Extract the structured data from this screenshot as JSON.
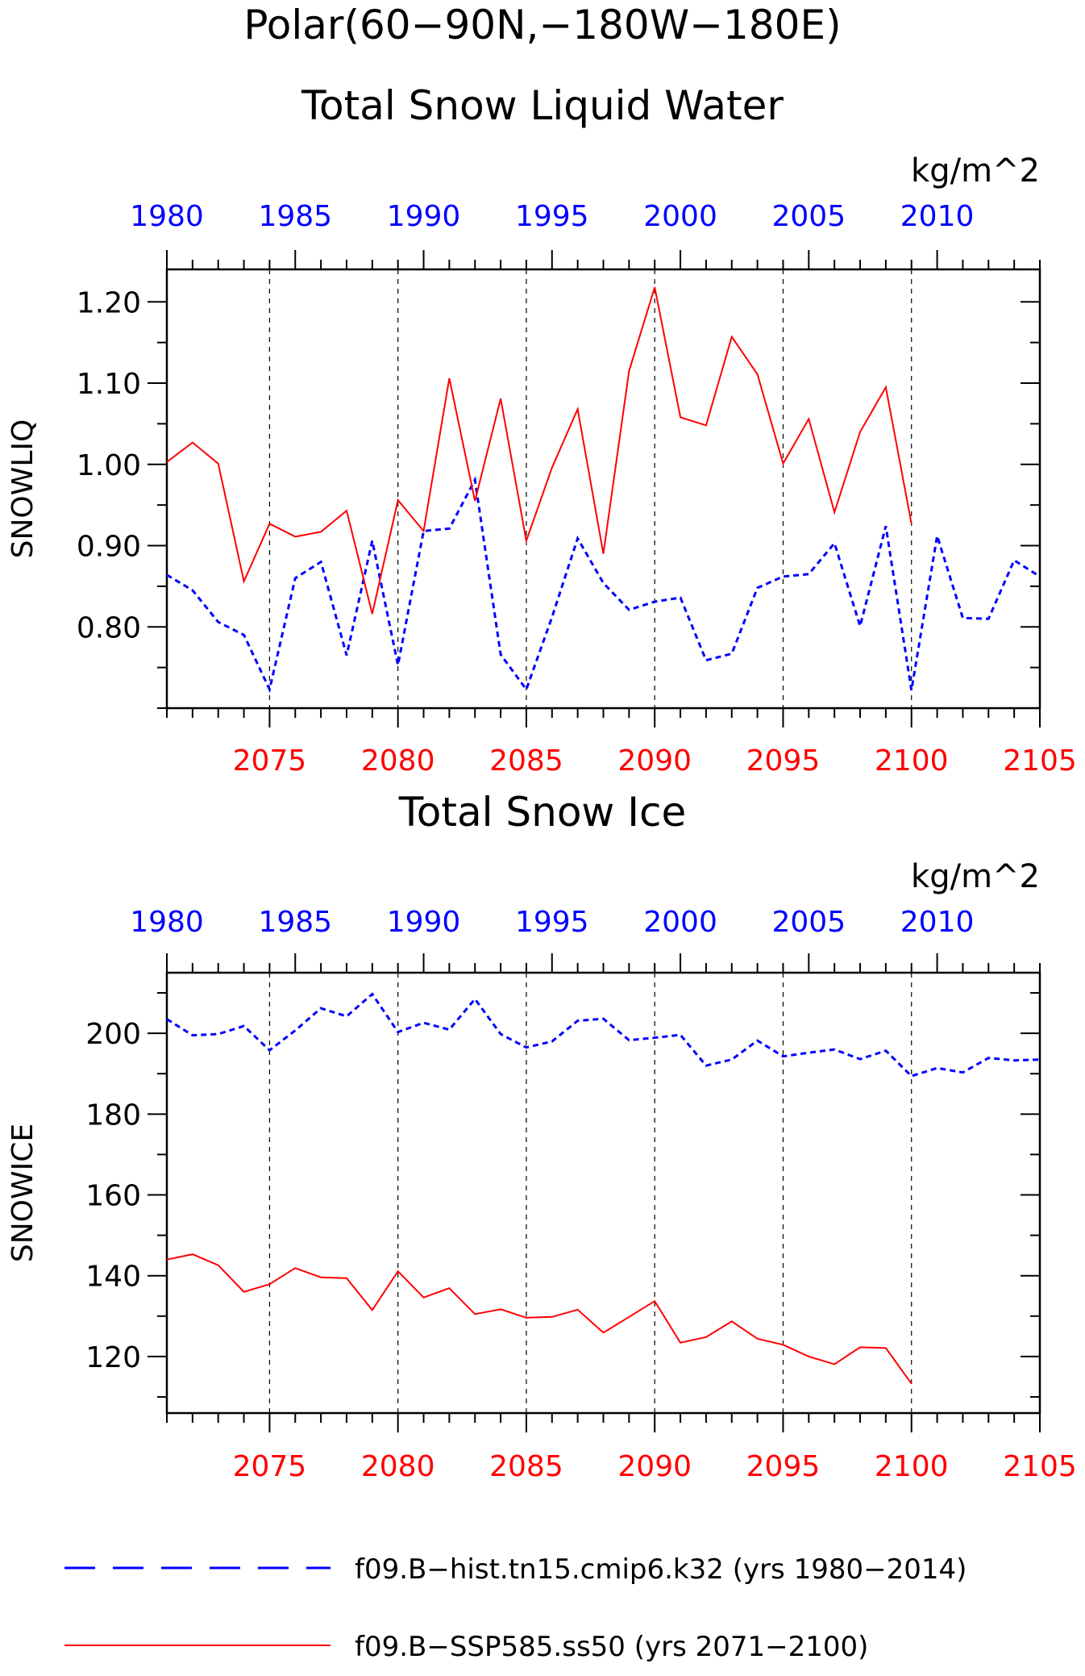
{
  "figure": {
    "title_line1": "Polar(60−90N,−180W−180E)",
    "legend": [
      {
        "label": "f09.B−hist.tn15.cmip6.k32 (yrs 1980−2014)",
        "color": "#0000ff",
        "style": "dashed"
      },
      {
        "label": "f09.B−SSP585.ss50 (yrs 2071−2100)",
        "color": "#ff0000",
        "style": "solid"
      }
    ]
  },
  "chart_data": [
    {
      "type": "line",
      "title": "Total Snow Liquid Water",
      "units": "kg/m^2",
      "ylabel": "SNOWLIQ",
      "ylim": [
        0.7,
        1.24
      ],
      "yticks": [
        {
          "value": 0.8,
          "label": "0.80"
        },
        {
          "value": 0.9,
          "label": "0.90"
        },
        {
          "value": 1.0,
          "label": "1.00"
        },
        {
          "value": 1.1,
          "label": "1.10"
        },
        {
          "value": 1.2,
          "label": "1.20"
        }
      ],
      "bottom_axis": {
        "range": [
          2071,
          2105
        ],
        "ticks": [
          2075,
          2080,
          2085,
          2090,
          2095,
          2100,
          2105
        ],
        "color": "#ff0000"
      },
      "top_axis": {
        "range": [
          1980,
          2014
        ],
        "ticks": [
          1980,
          1985,
          1990,
          1995,
          2000,
          2005,
          2010
        ],
        "color": "#0000ff"
      },
      "series": [
        {
          "axis": "top",
          "color": "#0000ff",
          "style": "dashed",
          "x": [
            1980,
            1981,
            1982,
            1983,
            1984,
            1985,
            1986,
            1987,
            1988,
            1989,
            1990,
            1991,
            1992,
            1993,
            1994,
            1995,
            1996,
            1997,
            1998,
            1999,
            2000,
            2001,
            2002,
            2003,
            2004,
            2005,
            2006,
            2007,
            2008,
            2009,
            2010,
            2011,
            2012,
            2013,
            2014
          ],
          "y": [
            0.864,
            0.845,
            0.806,
            0.79,
            0.723,
            0.86,
            0.88,
            0.765,
            0.906,
            0.753,
            0.918,
            0.921,
            0.981,
            0.766,
            0.723,
            0.812,
            0.909,
            0.854,
            0.821,
            0.831,
            0.836,
            0.759,
            0.767,
            0.848,
            0.862,
            0.865,
            0.903,
            0.801,
            0.924,
            0.722,
            0.912,
            0.811,
            0.81,
            0.882,
            0.862
          ]
        },
        {
          "axis": "bottom",
          "color": "#ff0000",
          "style": "solid",
          "x": [
            2071,
            2072,
            2073,
            2074,
            2075,
            2076,
            2077,
            2078,
            2079,
            2080,
            2081,
            2082,
            2083,
            2084,
            2085,
            2086,
            2087,
            2088,
            2089,
            2090,
            2091,
            2092,
            2093,
            2094,
            2095,
            2096,
            2097,
            2098,
            2099,
            2100
          ],
          "y": [
            1.003,
            1.027,
            1.001,
            0.856,
            0.927,
            0.911,
            0.917,
            0.943,
            0.816,
            0.956,
            0.918,
            1.106,
            0.955,
            1.081,
            0.906,
            0.996,
            1.068,
            0.89,
            1.115,
            1.218,
            1.058,
            1.048,
            1.157,
            1.111,
            1.001,
            1.056,
            0.941,
            1.04,
            1.095,
            0.927
          ]
        }
      ]
    },
    {
      "type": "line",
      "title": "Total Snow Ice",
      "units": "kg/m^2",
      "ylabel": "SNOWICE",
      "ylim": [
        106,
        215
      ],
      "yticks": [
        {
          "value": 120,
          "label": "120"
        },
        {
          "value": 140,
          "label": "140"
        },
        {
          "value": 160,
          "label": "160"
        },
        {
          "value": 180,
          "label": "180"
        },
        {
          "value": 200,
          "label": "200"
        }
      ],
      "bottom_axis": {
        "range": [
          2071,
          2105
        ],
        "ticks": [
          2075,
          2080,
          2085,
          2090,
          2095,
          2100,
          2105
        ],
        "color": "#ff0000"
      },
      "top_axis": {
        "range": [
          1980,
          2014
        ],
        "ticks": [
          1980,
          1985,
          1990,
          1995,
          2000,
          2005,
          2010
        ],
        "color": "#0000ff"
      },
      "series": [
        {
          "axis": "top",
          "color": "#0000ff",
          "style": "dashed",
          "x": [
            1980,
            1981,
            1982,
            1983,
            1984,
            1985,
            1986,
            1987,
            1988,
            1989,
            1990,
            1991,
            1992,
            1993,
            1994,
            1995,
            1996,
            1997,
            1998,
            1999,
            2000,
            2001,
            2002,
            2003,
            2004,
            2005,
            2006,
            2007,
            2008,
            2009,
            2010,
            2011,
            2012,
            2013,
            2014
          ],
          "y": [
            203.5,
            199.5,
            199.8,
            201.8,
            195.8,
            200.7,
            206.2,
            204.2,
            209.7,
            200.3,
            202.6,
            200.9,
            208.5,
            199.8,
            196.5,
            198.0,
            203.1,
            203.6,
            198.3,
            198.9,
            199.6,
            192.0,
            193.5,
            198.2,
            194.3,
            195.2,
            196.0,
            193.6,
            195.7,
            189.4,
            191.4,
            190.3,
            193.9,
            193.3,
            193.5
          ]
        },
        {
          "axis": "bottom",
          "color": "#ff0000",
          "style": "solid",
          "x": [
            2071,
            2072,
            2073,
            2074,
            2075,
            2076,
            2077,
            2078,
            2079,
            2080,
            2081,
            2082,
            2083,
            2084,
            2085,
            2086,
            2087,
            2088,
            2089,
            2090,
            2091,
            2092,
            2093,
            2094,
            2095,
            2096,
            2097,
            2098,
            2099,
            2100
          ],
          "y": [
            144.0,
            145.3,
            142.6,
            136.0,
            137.9,
            141.9,
            139.6,
            139.4,
            131.5,
            141.1,
            134.6,
            136.9,
            130.5,
            131.7,
            129.6,
            129.8,
            131.6,
            125.9,
            129.8,
            133.7,
            123.4,
            124.8,
            128.7,
            124.4,
            122.9,
            120.0,
            118.1,
            122.3,
            122.1,
            113.3
          ]
        }
      ]
    }
  ]
}
